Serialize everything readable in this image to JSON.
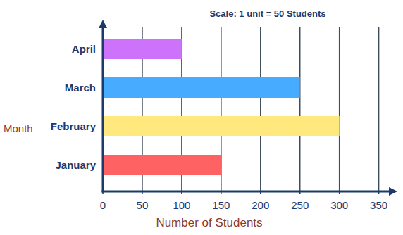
{
  "chart_data": {
    "type": "bar",
    "orientation": "horizontal",
    "title": "Scale: 1 unit = 50 Students",
    "xlabel": "Number of Students",
    "ylabel": "Month",
    "categories": [
      "January",
      "February",
      "March",
      "April"
    ],
    "values": [
      150,
      300,
      250,
      100
    ],
    "colors": [
      "#ff6262",
      "#ffe97e",
      "#47abff",
      "#cc72fb"
    ],
    "xlim": [
      0,
      370
    ],
    "xticks": [
      0,
      50,
      100,
      150,
      200,
      250,
      300,
      350
    ],
    "grid": true
  }
}
